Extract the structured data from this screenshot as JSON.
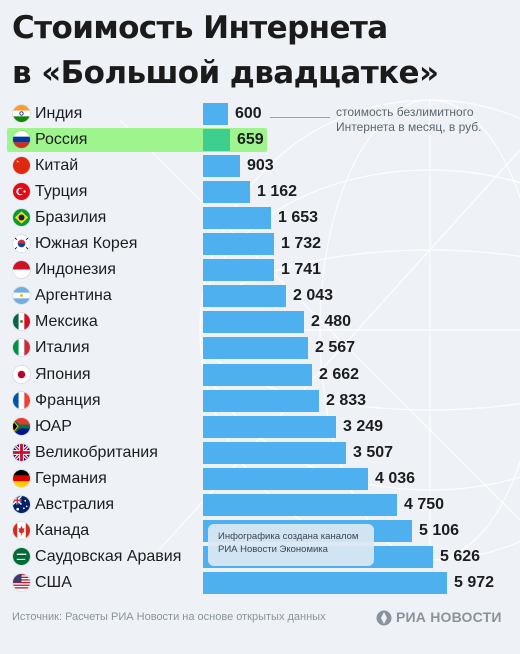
{
  "title_line1": "Стоимость Интернета",
  "title_line2": "в «Большой двадцатке»",
  "annotation": "стоимость безлимитного Интернета в месяц, в руб.",
  "info_box": "Инфографика создана каналом РИА Новости Экономика",
  "source": "Источник: Расчеты РИА Новости на основе открытых данных",
  "logo_text": "РИА НОВОСТИ",
  "colors": {
    "bar": "#4fb0ef",
    "highlight_bar": "#3ecf8e",
    "highlight_row": "#9ff58d"
  },
  "chart_data": {
    "type": "bar",
    "orientation": "horizontal",
    "title": "Стоимость Интернета в «Большой двадцатке»",
    "highlight": "Россия",
    "categories": [
      "Индия",
      "Россия",
      "Китай",
      "Турция",
      "Бразилия",
      "Южная Корея",
      "Индонезия",
      "Аргентина",
      "Мексика",
      "Италия",
      "Япония",
      "Франция",
      "ЮАР",
      "Великобритания",
      "Германия",
      "Австралия",
      "Канада",
      "Саудовская Аравия",
      "США"
    ],
    "values": [
      600,
      659,
      903,
      1162,
      1653,
      1732,
      1741,
      2043,
      2480,
      2567,
      2662,
      2833,
      3249,
      3507,
      4036,
      4750,
      5106,
      5626,
      5972
    ],
    "value_labels": [
      "600",
      "659",
      "903",
      "1 162",
      "1 653",
      "1 732",
      "1 741",
      "2 043",
      "2 480",
      "2 567",
      "2 662",
      "2 833",
      "3 249",
      "3 507",
      "4 036",
      "4 750",
      "5 106",
      "5 626",
      "5 972"
    ],
    "flags": [
      "india-flag",
      "russia-flag",
      "china-flag",
      "turkey-flag",
      "brazil-flag",
      "south-korea-flag",
      "indonesia-flag",
      "argentina-flag",
      "mexico-flag",
      "italy-flag",
      "japan-flag",
      "france-flag",
      "south-africa-flag",
      "uk-flag",
      "germany-flag",
      "australia-flag",
      "canada-flag",
      "saudi-arabia-flag",
      "usa-flag"
    ]
  }
}
